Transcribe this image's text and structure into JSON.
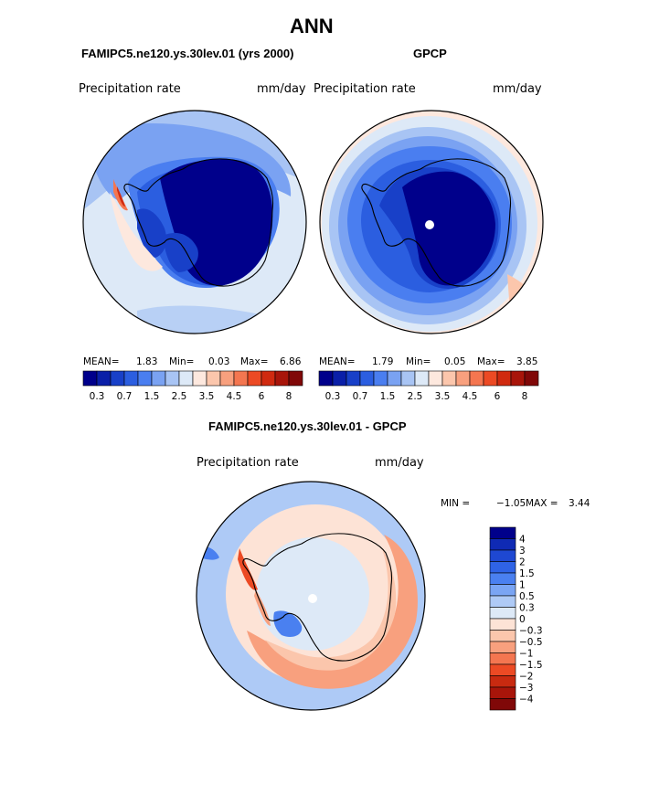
{
  "chart_data": {
    "type": "heatmap",
    "title": "ANN",
    "panels": [
      {
        "id": "model",
        "subtitle": "FAMIPC5.ne120.ys.30lev.01 (yrs 2000)",
        "variable": "Precipitation rate",
        "units": "mm/day",
        "stats": {
          "mean_label": "MEAN=",
          "mean": "1.83",
          "min_label": "Min=",
          "min": "0.03",
          "max_label": "Max=",
          "max": "6.86"
        }
      },
      {
        "id": "obs",
        "subtitle": "GPCP",
        "variable": "Precipitation rate",
        "units": "mm/day",
        "stats": {
          "mean_label": "MEAN=",
          "mean": "1.79",
          "min_label": "Min=",
          "min": "0.05",
          "max_label": "Max=",
          "max": "3.85"
        }
      },
      {
        "id": "diff",
        "subtitle": "FAMIPC5.ne120.ys.30lev.01 - GPCP",
        "variable": "Precipitation rate",
        "units": "mm/day",
        "stats": {
          "min_label": "MIN =",
          "min": "−1.05",
          "max_label": "MAX =",
          "max": "3.44"
        }
      }
    ],
    "abs_colorbar": {
      "colors": [
        "#00008b",
        "#0a1fa8",
        "#1840c8",
        "#2b5ee0",
        "#4a7ef0",
        "#7aa2f2",
        "#a8c4f4",
        "#dde9f7",
        "#fde8de",
        "#fbc6ac",
        "#f8a07e",
        "#f47650",
        "#ec4a24",
        "#d02a10",
        "#a8150a",
        "#800808"
      ],
      "tick_labels": [
        "0.3",
        "0.7",
        "1.5",
        "2.5",
        "3.5",
        "4.5",
        "6",
        "8"
      ]
    },
    "diff_colorbar": {
      "colors": [
        "#00008b",
        "#0f2ab4",
        "#1e48d2",
        "#2f63e6",
        "#4a80f0",
        "#7aa5f4",
        "#aecaf6",
        "#dde9f7",
        "#fde3d6",
        "#fbc6ac",
        "#f8a07e",
        "#f47650",
        "#ec4a24",
        "#c82a10",
        "#a8150a",
        "#800808"
      ],
      "tick_labels": [
        "4",
        "3",
        "2",
        "1.5",
        "1",
        "0.5",
        "0.3",
        "0",
        "−0.3",
        "−0.5",
        "−1",
        "−1.5",
        "−2",
        "−3",
        "−4"
      ]
    }
  }
}
